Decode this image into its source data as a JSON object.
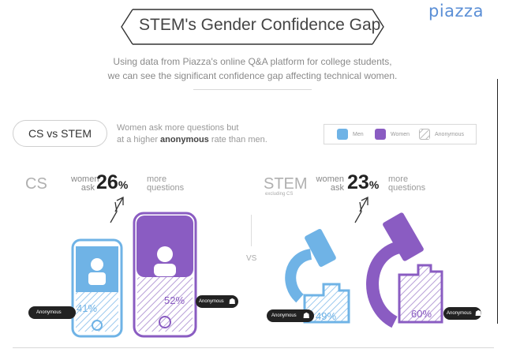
{
  "brand": "piazza",
  "title": "STEM's Gender Confidence Gap",
  "intro": {
    "line1": "Using data from Piazza's online Q&A platform for college students,",
    "line2": "we can see the significant confidence gap affecting technical women."
  },
  "section_pill": "CS vs STEM",
  "subtext": {
    "line1": "Women ask more questions but",
    "line2_pre": "at a higher ",
    "line2_bold": "anonymous",
    "line2_post": " rate than men."
  },
  "legend": {
    "men": "Men",
    "women": "Women",
    "anonymous": "Anonymous",
    "men_color": "#6fb3e6",
    "women_color": "#8a5cc2"
  },
  "cs": {
    "label": "CS",
    "women": "women",
    "ask": "ask",
    "pct": "26",
    "pct_sign": "%",
    "more": "more",
    "questions": "questions",
    "men_anon_pct": "41%",
    "women_anon_pct": "52%",
    "anon_label": "Anonymous"
  },
  "vs": "VS",
  "stem": {
    "label": "STEM",
    "sublabel": "excluding CS",
    "women": "women",
    "ask": "ask",
    "pct": "23",
    "pct_sign": "%",
    "more": "more",
    "questions": "questions",
    "men_anon_pct": "49%",
    "women_anon_pct": "60%",
    "anon_label": "Anonymous"
  },
  "colors": {
    "men": "#6fb3e6",
    "women": "#8a5cc2",
    "men_light": "#cfe4f5",
    "women_light": "#ddd0ec"
  }
}
